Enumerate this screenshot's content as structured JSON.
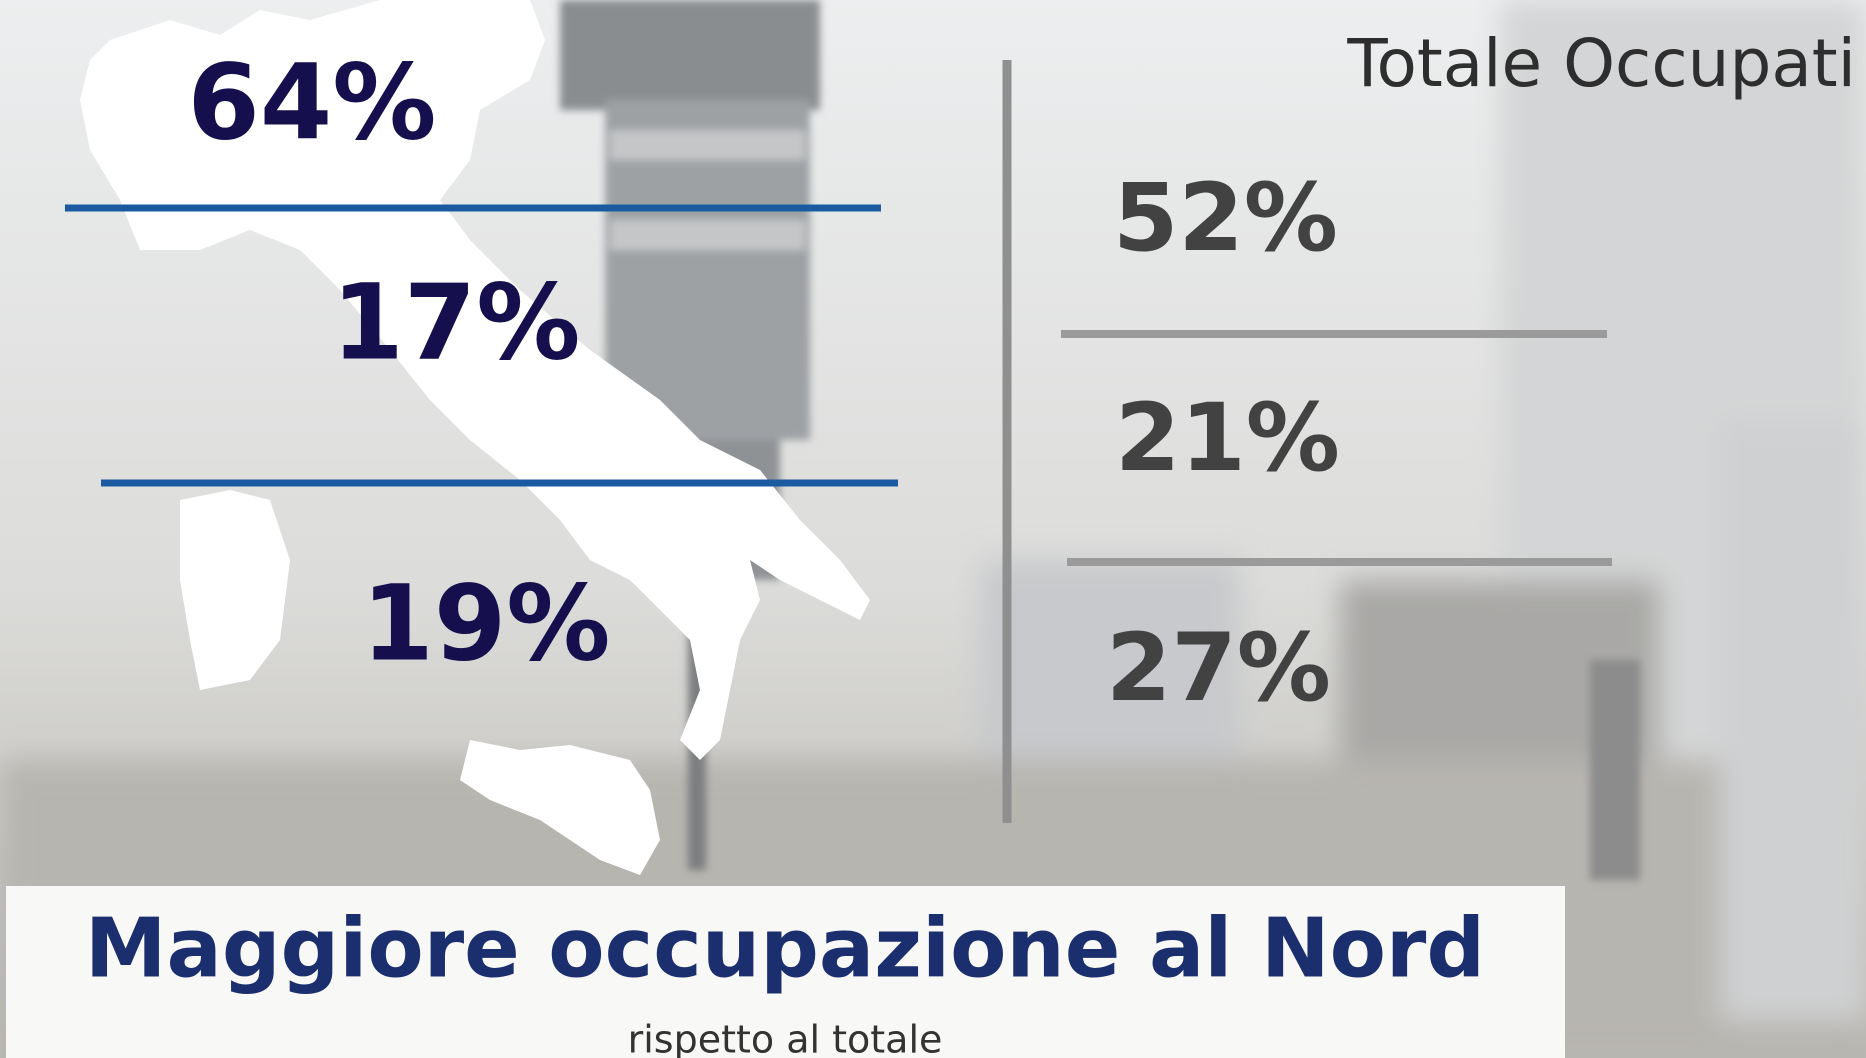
{
  "left": {
    "values": [
      "64%",
      "17%",
      "19%"
    ]
  },
  "right": {
    "title": "Totale Occupati",
    "values": [
      "52%",
      "21%",
      "27%"
    ]
  },
  "caption": {
    "title": "Maggiore occupazione al Nord",
    "subtitle": "rispetto al totale"
  }
}
